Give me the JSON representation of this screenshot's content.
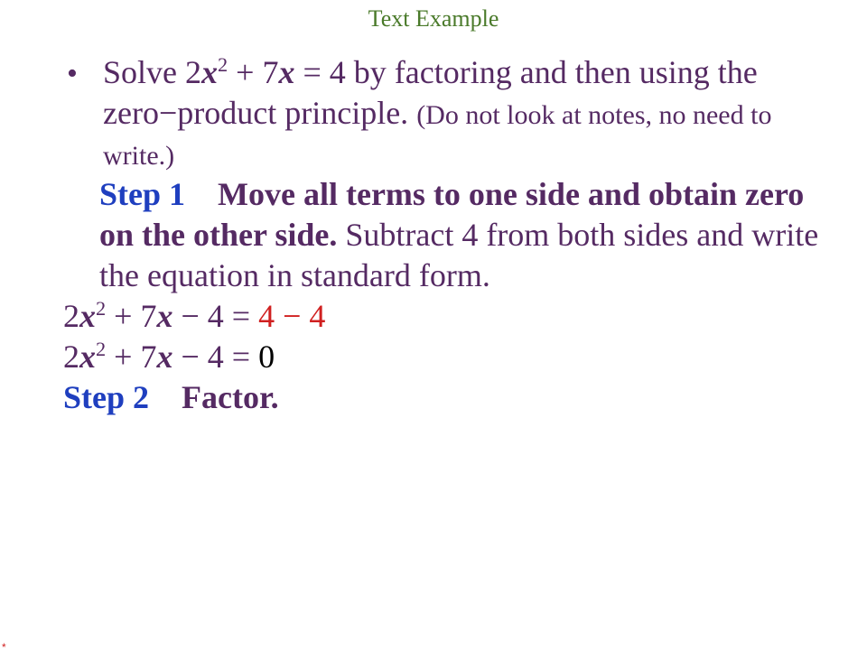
{
  "colors": {
    "title": "#4a7a2a",
    "body_default": "#552a63",
    "step_label": "#1f3fbf",
    "red": "#d02020",
    "black": "#000000",
    "red_star": "#d02020"
  },
  "fontsize": {
    "title": 26,
    "body": 36
  },
  "title": "Text Example",
  "bullet_char": "•",
  "problem": {
    "prefix": "Solve ",
    "expr_lead2": "2",
    "expr_x": "x",
    "expr_sup2": "2",
    "expr_plus": " + ",
    "expr_lead7": "7",
    "expr_x2": "x",
    "expr_eq4": " = 4",
    "rest": " by factoring and then using the zero",
    "dash": "−",
    "rest2": "product principle.  ",
    "note": "(Do not look at notes, no need to write.)"
  },
  "step1": {
    "label": "Step 1",
    "gap": "    ",
    "title_bold": "Move all terms to one side and obtain zero on the other side.",
    "rest": " Subtract 4 from both sides and write the equation in standard form."
  },
  "eq1": {
    "a": "2",
    "x1": "x",
    "sup": "2",
    "plus": " + ",
    "b": "7",
    "x2": "x",
    "m1": " − ",
    "c": "4 = ",
    "red": "4 − 4"
  },
  "eq2": {
    "a": "2",
    "x1": "x",
    "sup": "2",
    "plus": " + ",
    "b": "7",
    "x2": "x",
    "m1": " − ",
    "c": "4 = ",
    "zero": "0"
  },
  "step2": {
    "label": "Step 2",
    "gap": "    ",
    "title_bold": "Factor."
  },
  "red_star": "*"
}
